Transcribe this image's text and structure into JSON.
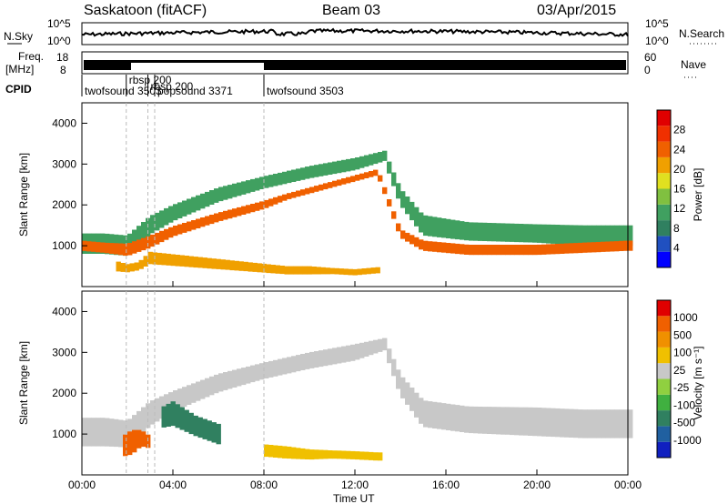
{
  "header": {
    "title": "Saskatoon (fitACF)",
    "beam": "Beam 03",
    "date": "03/Apr/2015"
  },
  "summary": {
    "left_labels": {
      "nsky": "N.Sky",
      "freq_line1": "Freq.",
      "freq_line2": "[MHz]",
      "cpid": "CPID"
    },
    "right_labels": {
      "nsearch": "N.Search",
      "nave": "Nave"
    },
    "nsky_ticks": [
      "10^5",
      "10^0"
    ],
    "nsearch_ticks": [
      "10^5",
      "10^0"
    ],
    "freq_ticks": [
      "18",
      "8"
    ],
    "nave_ticks": [
      "60",
      "0"
    ],
    "cpid_segments": [
      {
        "label": "twofsound 3503",
        "start_h": 0.0
      },
      {
        "label": "rbsp 200",
        "start_h": 1.95
      },
      {
        "label": "rbsp 200",
        "start_h": 2.9
      },
      {
        "label": "popsound 3371",
        "start_h": 3.2
      },
      {
        "label": "twofsound 3503",
        "start_h": 8.0
      }
    ]
  },
  "axes": {
    "ylabel": "Slant Range [km]",
    "xlabel": "Time UT",
    "y_ticks": [
      "4000",
      "3000",
      "2000",
      "1000"
    ],
    "x_ticks": [
      "00:00",
      "04:00",
      "08:00",
      "12:00",
      "16:00",
      "20:00",
      "00:00"
    ]
  },
  "colorbars": {
    "power": {
      "label": "Power [dB]",
      "ticks": [
        "28",
        "24",
        "20",
        "16",
        "12",
        "8",
        "4"
      ],
      "colors": [
        "#0000ff",
        "#2050c0",
        "#308060",
        "#40a060",
        "#80c040",
        "#e0e020",
        "#f0a000",
        "#f06000",
        "#f03000",
        "#e00000"
      ]
    },
    "velocity": {
      "label": "Velocity [m s⁻¹]",
      "ticks": [
        "1000",
        "500",
        "100",
        "25",
        "-25",
        "-100",
        "-500",
        "-1000"
      ],
      "colors": [
        "#1020c0",
        "#2060a0",
        "#308060",
        "#40b040",
        "#90d040",
        "#c8c8c8",
        "#f0c000",
        "#f09000",
        "#f06000",
        "#e00000"
      ]
    }
  },
  "chart_data": [
    {
      "type": "heatmap",
      "name": "power",
      "x_unit": "hour UT",
      "x_range": [
        0,
        24
      ],
      "y_range": [
        0,
        4500
      ],
      "bands": [
        {
          "t": [
            0.0,
            1.0,
            2.0,
            3.0,
            4.0,
            6.0,
            8.0,
            10.0,
            12.0,
            13.3,
            14.0,
            15.0,
            17.0,
            20.0,
            22.0,
            24.0
          ],
          "center": [
            1050,
            1050,
            1000,
            1500,
            1800,
            2250,
            2550,
            2800,
            3000,
            3200,
            2200,
            1500,
            1350,
            1300,
            1250,
            1250
          ],
          "width": [
            500,
            500,
            500,
            450,
            400,
            350,
            300,
            300,
            300,
            250,
            400,
            500,
            450,
            450,
            500,
            500
          ],
          "level": 3
        },
        {
          "t": [
            0.0,
            1.0,
            2.0,
            3.0,
            4.0,
            6.0,
            8.0,
            9.0,
            13.0,
            14.0,
            15.0,
            17.0,
            20.0,
            22.0,
            24.0
          ],
          "center": [
            1000,
            950,
            900,
            1100,
            1350,
            1700,
            2000,
            2200,
            2800,
            1300,
            1000,
            900,
            900,
            950,
            1000
          ],
          "width": [
            250,
            250,
            300,
            300,
            250,
            220,
            200,
            150,
            150,
            200,
            250,
            250,
            250,
            250,
            250
          ],
          "level": 7
        },
        {
          "t": [
            1.5,
            2.0,
            2.5,
            3.0,
            9.0,
            10.0,
            11.0,
            12.0,
            13.0
          ],
          "center": [
            500,
            450,
            500,
            700,
            400,
            400,
            380,
            350,
            400
          ],
          "width": [
            250,
            200,
            200,
            300,
            200,
            200,
            150,
            150,
            150
          ],
          "level": 6
        }
      ]
    },
    {
      "type": "heatmap",
      "name": "velocity",
      "x_unit": "hour UT",
      "x_range": [
        0,
        24
      ],
      "y_range": [
        0,
        4500
      ],
      "bands": [
        {
          "t": [
            0.0,
            1.0,
            2.0,
            3.0,
            4.0,
            6.0,
            8.0,
            10.0,
            12.0,
            13.3,
            14.0,
            15.0,
            17.0,
            20.0,
            22.0,
            24.0
          ],
          "center": [
            1050,
            1050,
            1000,
            1500,
            1800,
            2250,
            2550,
            2800,
            3000,
            3200,
            2200,
            1500,
            1350,
            1300,
            1250,
            1250
          ],
          "width": [
            700,
            700,
            650,
            600,
            500,
            450,
            400,
            400,
            400,
            300,
            500,
            650,
            650,
            700,
            700,
            700
          ],
          "level": 5
        },
        {
          "t": [
            1.8,
            2.2,
            2.6,
            3.0
          ],
          "center": [
            700,
            800,
            900,
            800
          ],
          "width": [
            500,
            600,
            400,
            300
          ],
          "level": 8
        },
        {
          "t": [
            3.5,
            4.0,
            5.0,
            6.0
          ],
          "center": [
            1400,
            1500,
            1200,
            1000
          ],
          "width": [
            500,
            600,
            500,
            500
          ],
          "level": 2
        },
        {
          "t": [
            8.0,
            9.0,
            10.0,
            11.0,
            12.0,
            13.0
          ],
          "center": [
            600,
            550,
            500,
            500,
            480,
            450
          ],
          "width": [
            300,
            300,
            250,
            200,
            200,
            200
          ],
          "level": 6
        }
      ]
    }
  ]
}
